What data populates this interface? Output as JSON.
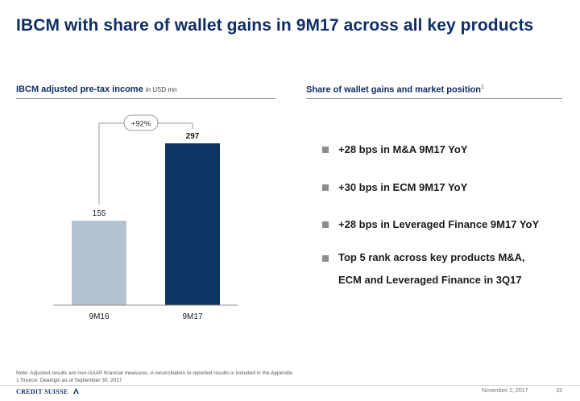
{
  "title": "IBCM with share of wallet gains in 9M17 across all key products",
  "left_section": {
    "heading": "IBCM adjusted pre-tax income",
    "unit": "in USD mn"
  },
  "right_section": {
    "heading": "Share of wallet gains and market position",
    "footnote_marker": "1",
    "bullets": [
      "+28 bps in M&A 9M17 YoY",
      "+30 bps in ECM 9M17 YoY",
      "+28 bps in Leveraged Finance 9M17 YoY",
      "Top 5 rank across key products M&A,",
      "ECM and Leveraged Finance in 3Q17"
    ]
  },
  "chart_data": {
    "type": "bar",
    "categories": [
      "9M16",
      "9M17"
    ],
    "values": [
      155,
      297
    ],
    "value_labels": [
      "155",
      "297"
    ],
    "ylim": [
      0,
      297
    ],
    "growth_label": "+92%",
    "colors": [
      "#b3c2d1",
      "#0f3564"
    ]
  },
  "footnotes": [
    "Note: Adjusted results are non-GAAP financial measures. A reconciliation to reported results is included in the Appendix",
    "1 Source: Dealogic as of September 30, 2017"
  ],
  "footer": {
    "logo_text": "CREDIT SUISSE",
    "date": "November 2, 2017",
    "page": "33"
  }
}
